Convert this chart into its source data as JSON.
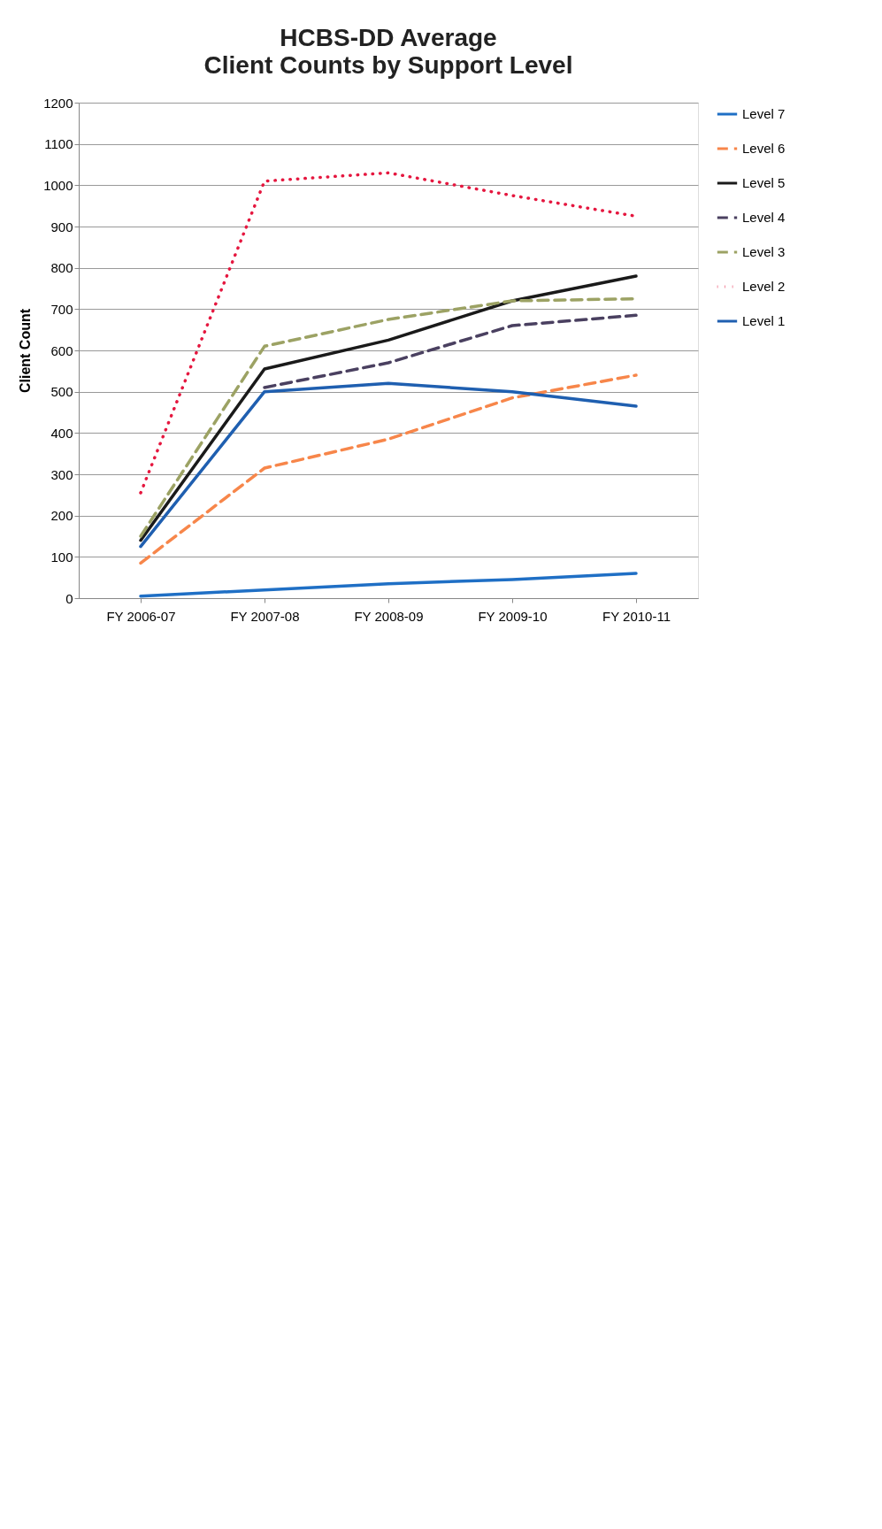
{
  "chart_data": {
    "type": "line",
    "title": "HCBS-DD Average",
    "subtitle": "Client Counts by Support Level",
    "ylabel": "Client Count",
    "categories": [
      "FY 2006-07",
      "FY 2007-08",
      "FY 2008-09",
      "FY 2009-10",
      "FY 2010-11"
    ],
    "ylim": [
      0,
      1200
    ],
    "yticks": [
      0,
      100,
      200,
      300,
      400,
      500,
      600,
      700,
      800,
      900,
      1000,
      1100,
      1200
    ],
    "grid": "y",
    "legend": "right",
    "series": [
      {
        "name": "Level 7",
        "color": "#1f6fc5",
        "line_style": "solid",
        "values": [
          5,
          20,
          35,
          45,
          60
        ]
      },
      {
        "name": "Level 6",
        "color": "#f7864a",
        "line_style": "dashed",
        "values": [
          85,
          315,
          385,
          485,
          540
        ]
      },
      {
        "name": "Level 5",
        "color": "#1a1a1a",
        "line_style": "solid",
        "values": [
          140,
          555,
          625,
          720,
          780
        ]
      },
      {
        "name": "Level 4",
        "color": "#4a4060",
        "line_style": "dashed",
        "values": [
          null,
          510,
          570,
          660,
          685
        ]
      },
      {
        "name": "Level 3",
        "color": "#9ca264",
        "line_style": "dashed",
        "values": [
          150,
          610,
          675,
          720,
          725
        ]
      },
      {
        "name": "Level 2",
        "color": "#e5173f",
        "line_style": "dotted",
        "values": [
          255,
          1010,
          1030,
          975,
          925
        ]
      },
      {
        "name": "Level 1",
        "color": "#1f5fb0",
        "line_style": "solid",
        "values": [
          125,
          500,
          520,
          500,
          465
        ]
      }
    ]
  }
}
